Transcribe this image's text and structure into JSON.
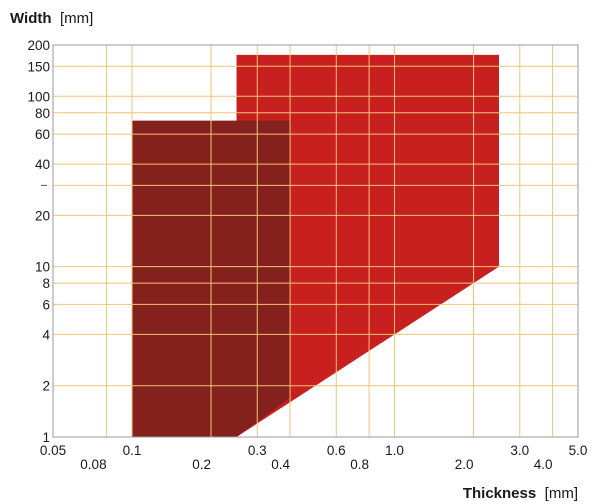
{
  "chart_data": {
    "type": "area",
    "title": "",
    "x_axis": {
      "name": "Thickness",
      "unit": "[mm]",
      "scale": "log",
      "range": [
        0.05,
        5.0
      ],
      "ticks_top": [
        "0.05",
        "0.1",
        "0.3",
        "0.6",
        "1.0",
        "3.0",
        "5.0"
      ],
      "ticks_top_values": [
        0.05,
        0.1,
        0.3,
        0.6,
        1.0,
        3.0,
        5.0
      ],
      "ticks_bottom": [
        "0.08",
        "0.2",
        "0.4",
        "0.8",
        "2.0",
        "4.0"
      ],
      "ticks_bottom_values": [
        0.08,
        0.2,
        0.4,
        0.8,
        2.0,
        4.0
      ]
    },
    "y_axis": {
      "name": "Width",
      "unit": "[mm]",
      "scale": "log",
      "range": [
        1,
        200
      ],
      "ticks": [
        "1",
        "2",
        "4",
        "6",
        "8",
        "10",
        "20",
        "40",
        "60",
        "80",
        "100",
        "150",
        "200"
      ],
      "tick_values": [
        1,
        2,
        4,
        6,
        8,
        10,
        20,
        40,
        60,
        80,
        100,
        150,
        200
      ],
      "extra_gridlines": [
        30
      ]
    },
    "grid": true,
    "series": [
      {
        "color": "#c8201f",
        "polygon": [
          {
            "x": 0.25,
            "y": 175
          },
          {
            "x": 2.5,
            "y": 175
          },
          {
            "x": 2.5,
            "y": 10
          },
          {
            "x": 0.25,
            "y": 1
          },
          {
            "x": 0.25,
            "y": 72
          },
          {
            "x": 0.25,
            "y": 175
          }
        ]
      },
      {
        "color": "#85211d",
        "polygon": [
          {
            "x": 0.1,
            "y": 72
          },
          {
            "x": 0.4,
            "y": 72
          },
          {
            "x": 0.4,
            "y": 1.7
          },
          {
            "x": 0.25,
            "y": 1
          },
          {
            "x": 0.1,
            "y": 1
          }
        ]
      }
    ],
    "grid_color": "#f2c476",
    "frame_color": "#9a9a9a"
  }
}
